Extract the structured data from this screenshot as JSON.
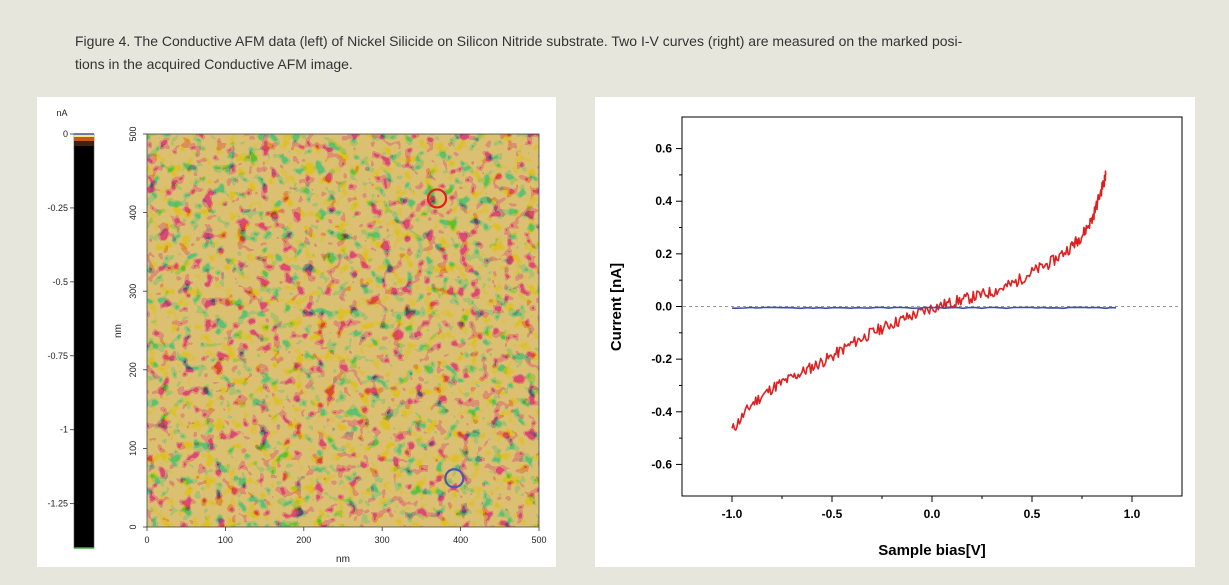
{
  "figure": {
    "caption_line1": "Figure 4. The Conductive AFM data (left) of Nickel Silicide on Silicon Nitride substrate. Two I-V curves (right) are measured on the marked posi-",
    "caption_line2": "tions in the acquired Conductive AFM image."
  },
  "afm_image": {
    "colorbar_unit": "nA",
    "colorbar_ticks": [
      "0",
      "-0.25",
      "-0.5",
      "-0.75",
      "-1",
      "-1.25"
    ],
    "colorbar_values": [
      0,
      -0.25,
      -0.5,
      -0.75,
      -1,
      -1.25
    ],
    "colorbar_range": [
      -1.4,
      0
    ],
    "x_ticks": [
      "0",
      "100",
      "200",
      "300",
      "400",
      "500"
    ],
    "y_ticks": [
      "0",
      "100",
      "200",
      "300",
      "400",
      "500"
    ],
    "axis_values": [
      0,
      100,
      200,
      300,
      400,
      500
    ],
    "xlabel": "nm",
    "ylabel": "nm",
    "markers": [
      {
        "color": "#e02020",
        "x_nm": 370,
        "y_nm": 418
      },
      {
        "color": "#4a5ab0",
        "x_nm": 392,
        "y_nm": 62
      }
    ],
    "colors": {
      "bright": "#b7882c",
      "dark": "#1e1206"
    }
  },
  "chart_data": {
    "type": "line",
    "xlabel": "Sample bias[V]",
    "ylabel": "Current [nA]",
    "xlim": [
      -1.25,
      1.25
    ],
    "ylim": [
      -0.72,
      0.72
    ],
    "x_ticks": [
      -1.0,
      -0.5,
      0.0,
      0.5,
      1.0
    ],
    "x_tick_labels": [
      "-1.0",
      "-0.5",
      "0.0",
      "0.5",
      "1.0"
    ],
    "y_ticks": [
      -0.6,
      -0.4,
      -0.2,
      0.0,
      0.2,
      0.4,
      0.6
    ],
    "y_tick_labels": [
      "-0.6",
      "-0.4",
      "-0.2",
      "0.0",
      "0.2",
      "0.4",
      "0.6"
    ],
    "zero_reference_line": true,
    "series": [
      {
        "color": "#e02020",
        "x": [
          -1.0,
          -0.9,
          -0.8,
          -0.7,
          -0.6,
          -0.5,
          -0.4,
          -0.3,
          -0.2,
          -0.1,
          0.0,
          0.1,
          0.2,
          0.3,
          0.4,
          0.5,
          0.6,
          0.7,
          0.75,
          0.8,
          0.85,
          0.87
        ],
        "y": [
          -0.47,
          -0.37,
          -0.31,
          -0.27,
          -0.23,
          -0.19,
          -0.14,
          -0.1,
          -0.065,
          -0.035,
          -0.005,
          0.015,
          0.035,
          0.055,
          0.085,
          0.13,
          0.17,
          0.23,
          0.27,
          0.33,
          0.45,
          0.5
        ]
      },
      {
        "color": "#3f4fa8",
        "x": [
          -1.0,
          -0.5,
          0.0,
          0.5,
          0.92
        ],
        "y": [
          -0.005,
          -0.005,
          -0.005,
          -0.005,
          -0.005
        ]
      }
    ]
  }
}
